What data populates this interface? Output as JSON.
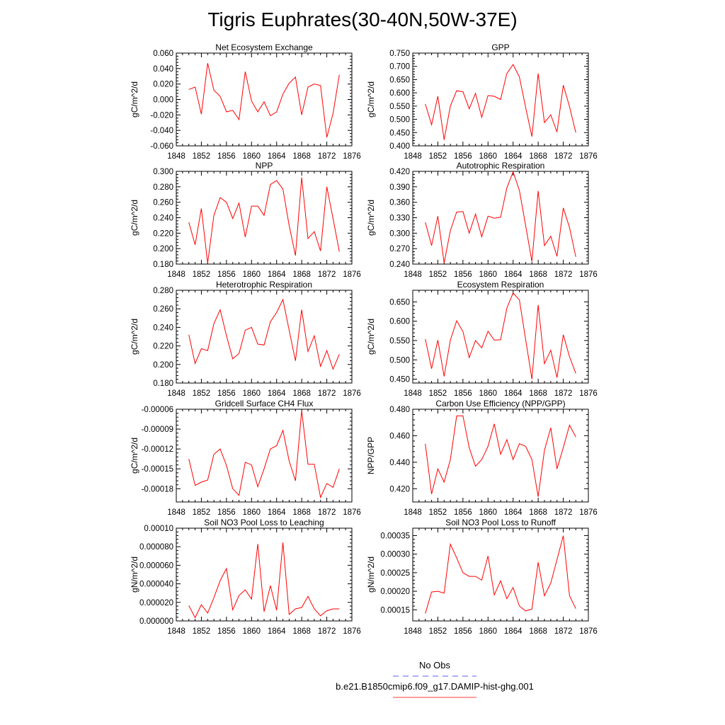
{
  "title": "Tigris Euphrates(30-40N,50W-37E)",
  "legend": [
    {
      "label": "No Obs",
      "color": "#5a5aff",
      "dash": true
    },
    {
      "label": "b.e21.B1850cmip6.f09_g17.DAMIP-hist-ghg.001",
      "color": "#ff3b3b",
      "dash": false
    }
  ],
  "chart_data": [
    {
      "type": "line",
      "title": "Net Ecosystem Exchange",
      "ylabel": "gC/m^2/d",
      "ylim": [
        -0.06,
        0.06
      ],
      "xlim": [
        1848,
        1876
      ],
      "yticks": [
        -0.06,
        -0.04,
        -0.02,
        0,
        0.02,
        0.04,
        0.06
      ],
      "ytick_labels": [
        "-0.060",
        "-0.040",
        "-0.020",
        "0.000",
        "0.020",
        "0.040",
        "0.060"
      ],
      "xticks": [
        1848,
        1852,
        1856,
        1860,
        1864,
        1868,
        1872,
        1876
      ],
      "x": [
        1850,
        1851,
        1852,
        1853,
        1854,
        1855,
        1856,
        1857,
        1858,
        1859,
        1860,
        1861,
        1862,
        1863,
        1864,
        1865,
        1866,
        1867,
        1868,
        1869,
        1870,
        1871,
        1872,
        1873,
        1874
      ],
      "series": [
        {
          "values": [
            0.013,
            0.016,
            -0.019,
            0.047,
            0.012,
            0.004,
            -0.016,
            -0.014,
            -0.026,
            0.036,
            -0.002,
            -0.016,
            -0.003,
            -0.021,
            -0.016,
            0.007,
            0.021,
            0.029,
            -0.02,
            0.016,
            0.02,
            0.018,
            -0.049,
            -0.018,
            0.032
          ]
        }
      ]
    },
    {
      "type": "line",
      "title": "GPP",
      "ylabel": "gC/m^2/d",
      "ylim": [
        0.4,
        0.75
      ],
      "xlim": [
        1848,
        1876
      ],
      "yticks": [
        0.4,
        0.45,
        0.5,
        0.55,
        0.6,
        0.65,
        0.7,
        0.75
      ],
      "ytick_labels": [
        "0.400",
        "0.450",
        "0.500",
        "0.550",
        "0.600",
        "0.650",
        "0.700",
        "0.750"
      ],
      "xticks": [
        1848,
        1852,
        1856,
        1860,
        1864,
        1868,
        1872,
        1876
      ],
      "x": [
        1850,
        1851,
        1852,
        1853,
        1854,
        1855,
        1856,
        1857,
        1858,
        1859,
        1860,
        1861,
        1862,
        1863,
        1864,
        1865,
        1866,
        1867,
        1868,
        1869,
        1870,
        1871,
        1872,
        1873,
        1874
      ],
      "series": [
        {
          "values": [
            0.558,
            0.48,
            0.587,
            0.423,
            0.55,
            0.608,
            0.604,
            0.54,
            0.598,
            0.508,
            0.59,
            0.587,
            0.575,
            0.673,
            0.707,
            0.66,
            0.545,
            0.435,
            0.673,
            0.488,
            0.517,
            0.452,
            0.629,
            0.548,
            0.45
          ]
        }
      ]
    },
    {
      "type": "line",
      "title": "NPP",
      "ylabel": "gC/m^2/d",
      "ylim": [
        0.18,
        0.3
      ],
      "xlim": [
        1848,
        1876
      ],
      "yticks": [
        0.18,
        0.2,
        0.22,
        0.24,
        0.26,
        0.28,
        0.3
      ],
      "ytick_labels": [
        "0.180",
        "0.200",
        "0.220",
        "0.240",
        "0.260",
        "0.280",
        "0.300"
      ],
      "xticks": [
        1848,
        1852,
        1856,
        1860,
        1864,
        1868,
        1872,
        1876
      ],
      "x": [
        1850,
        1851,
        1852,
        1853,
        1854,
        1855,
        1856,
        1857,
        1858,
        1859,
        1860,
        1861,
        1862,
        1863,
        1864,
        1865,
        1866,
        1867,
        1868,
        1869,
        1870,
        1871,
        1872,
        1873,
        1874
      ],
      "series": [
        {
          "values": [
            0.234,
            0.205,
            0.252,
            0.181,
            0.243,
            0.266,
            0.26,
            0.239,
            0.259,
            0.215,
            0.255,
            0.255,
            0.243,
            0.283,
            0.288,
            0.277,
            0.23,
            0.191,
            0.292,
            0.213,
            0.222,
            0.197,
            0.28,
            0.239,
            0.196
          ]
        }
      ]
    },
    {
      "type": "line",
      "title": "Autotrophic Respiration",
      "ylabel": "gC/m^2/d",
      "ylim": [
        0.24,
        0.42
      ],
      "xlim": [
        1848,
        1876
      ],
      "yticks": [
        0.24,
        0.27,
        0.3,
        0.33,
        0.36,
        0.39,
        0.42
      ],
      "ytick_labels": [
        "0.240",
        "0.270",
        "0.300",
        "0.330",
        "0.360",
        "0.390",
        "0.420"
      ],
      "xticks": [
        1848,
        1852,
        1856,
        1860,
        1864,
        1868,
        1872,
        1876
      ],
      "x": [
        1850,
        1851,
        1852,
        1853,
        1854,
        1855,
        1856,
        1857,
        1858,
        1859,
        1860,
        1861,
        1862,
        1863,
        1864,
        1865,
        1866,
        1867,
        1868,
        1869,
        1870,
        1871,
        1872,
        1873,
        1874
      ],
      "series": [
        {
          "values": [
            0.321,
            0.276,
            0.333,
            0.242,
            0.305,
            0.341,
            0.342,
            0.3,
            0.337,
            0.293,
            0.333,
            0.329,
            0.331,
            0.388,
            0.419,
            0.383,
            0.315,
            0.245,
            0.382,
            0.276,
            0.294,
            0.255,
            0.349,
            0.311,
            0.254
          ]
        }
      ]
    },
    {
      "type": "line",
      "title": "Heterotrophic Respiration",
      "ylabel": "gC/m^2/d",
      "ylim": [
        0.18,
        0.28
      ],
      "xlim": [
        1848,
        1876
      ],
      "yticks": [
        0.18,
        0.2,
        0.22,
        0.24,
        0.26,
        0.28
      ],
      "ytick_labels": [
        "0.180",
        "0.200",
        "0.220",
        "0.240",
        "0.260",
        "0.280"
      ],
      "xticks": [
        1848,
        1852,
        1856,
        1860,
        1864,
        1868,
        1872,
        1876
      ],
      "x": [
        1850,
        1851,
        1852,
        1853,
        1854,
        1855,
        1856,
        1857,
        1858,
        1859,
        1860,
        1861,
        1862,
        1863,
        1864,
        1865,
        1866,
        1867,
        1868,
        1869,
        1870,
        1871,
        1872,
        1873,
        1874
      ],
      "series": [
        {
          "values": [
            0.232,
            0.201,
            0.217,
            0.215,
            0.244,
            0.259,
            0.231,
            0.206,
            0.212,
            0.237,
            0.24,
            0.222,
            0.221,
            0.246,
            0.256,
            0.27,
            0.237,
            0.204,
            0.259,
            0.214,
            0.231,
            0.198,
            0.215,
            0.195,
            0.211
          ]
        }
      ]
    },
    {
      "type": "line",
      "title": "Ecosystem Respiration",
      "ylabel": "gC/m^2/d",
      "ylim": [
        0.44,
        0.68
      ],
      "xlim": [
        1848,
        1876
      ],
      "yticks": [
        0.45,
        0.5,
        0.55,
        0.6,
        0.65
      ],
      "ytick_labels": [
        "0.450",
        "0.500",
        "0.550",
        "0.600",
        "0.650"
      ],
      "xticks": [
        1848,
        1852,
        1856,
        1860,
        1864,
        1868,
        1872,
        1876
      ],
      "x": [
        1850,
        1851,
        1852,
        1853,
        1854,
        1855,
        1856,
        1857,
        1858,
        1859,
        1860,
        1861,
        1862,
        1863,
        1864,
        1865,
        1866,
        1867,
        1868,
        1869,
        1870,
        1871,
        1872,
        1873,
        1874
      ],
      "series": [
        {
          "values": [
            0.554,
            0.477,
            0.551,
            0.457,
            0.551,
            0.601,
            0.573,
            0.506,
            0.55,
            0.531,
            0.574,
            0.551,
            0.552,
            0.634,
            0.673,
            0.655,
            0.553,
            0.45,
            0.642,
            0.49,
            0.525,
            0.454,
            0.565,
            0.508,
            0.465
          ]
        }
      ]
    },
    {
      "type": "line",
      "title": "Gridcell Surface CH4 Flux",
      "ylabel": "gC/m^2/d",
      "ylim": [
        -0.0002,
        -6e-05
      ],
      "xlim": [
        1848,
        1876
      ],
      "yticks": [
        -0.00018,
        -0.00015,
        -0.00012,
        -9e-05,
        -6e-05
      ],
      "ytick_labels": [
        "-0.00018",
        "-0.00015",
        "-0.00012",
        "-0.00009",
        "-0.00006"
      ],
      "xticks": [
        1848,
        1852,
        1856,
        1860,
        1864,
        1868,
        1872,
        1876
      ],
      "x": [
        1850,
        1851,
        1852,
        1853,
        1854,
        1855,
        1856,
        1857,
        1858,
        1859,
        1860,
        1861,
        1862,
        1863,
        1864,
        1865,
        1866,
        1867,
        1868,
        1869,
        1870,
        1871,
        1872,
        1873,
        1874
      ],
      "series": [
        {
          "values": [
            -0.000135,
            -0.000175,
            -0.00017,
            -0.000167,
            -0.000128,
            -0.00012,
            -0.000145,
            -0.00018,
            -0.00019,
            -0.00014,
            -0.000144,
            -0.000177,
            -0.00015,
            -0.00012,
            -0.000115,
            -9.2e-05,
            -0.000138,
            -0.000168,
            -6.2e-05,
            -0.000143,
            -0.000143,
            -0.000193,
            -0.000172,
            -0.000178,
            -0.00015
          ]
        }
      ]
    },
    {
      "type": "line",
      "title": "Carbon Use Efficiency (NPP/GPP)",
      "ylabel": "NPP/GPP",
      "ylim": [
        0.41,
        0.48
      ],
      "xlim": [
        1848,
        1876
      ],
      "yticks": [
        0.42,
        0.44,
        0.46,
        0.48
      ],
      "ytick_labels": [
        "0.420",
        "0.440",
        "0.460",
        "0.480"
      ],
      "xticks": [
        1848,
        1852,
        1856,
        1860,
        1864,
        1868,
        1872,
        1876
      ],
      "x": [
        1850,
        1851,
        1852,
        1853,
        1854,
        1855,
        1856,
        1857,
        1858,
        1859,
        1860,
        1861,
        1862,
        1863,
        1864,
        1865,
        1866,
        1867,
        1868,
        1869,
        1870,
        1871,
        1872,
        1873,
        1874
      ],
      "series": [
        {
          "values": [
            0.454,
            0.416,
            0.435,
            0.425,
            0.442,
            0.475,
            0.475,
            0.451,
            0.437,
            0.442,
            0.452,
            0.469,
            0.446,
            0.457,
            0.442,
            0.454,
            0.452,
            0.442,
            0.414,
            0.449,
            0.466,
            0.435,
            0.451,
            0.468,
            0.459
          ]
        }
      ]
    },
    {
      "type": "line",
      "title": "Soil NO3 Pool Loss to Leaching",
      "ylabel": "gN/m^2/d",
      "ylim": [
        0,
        0.0001
      ],
      "xlim": [
        1848,
        1876
      ],
      "yticks": [
        0,
        2e-05,
        4e-05,
        6e-05,
        8e-05,
        0.0001
      ],
      "ytick_labels": [
        "0.000000",
        "0.000020",
        "0.000040",
        "0.000060",
        "0.000080",
        "0.00010"
      ],
      "xticks": [
        1848,
        1852,
        1856,
        1860,
        1864,
        1868,
        1872,
        1876
      ],
      "x": [
        1850,
        1851,
        1852,
        1853,
        1854,
        1855,
        1856,
        1857,
        1858,
        1859,
        1860,
        1861,
        1862,
        1863,
        1864,
        1865,
        1866,
        1867,
        1868,
        1869,
        1870,
        1871,
        1872,
        1873,
        1874
      ],
      "series": [
        {
          "values": [
            1.65e-05,
            3.5e-06,
            1.75e-05,
            8.5e-06,
            2.5e-05,
            4.35e-05,
            5.65e-05,
            1.2e-05,
            2.75e-05,
            3.35e-05,
            2.35e-05,
            8.3e-05,
            1e-05,
            3.8e-05,
            1.15e-05,
            8.45e-05,
            7e-06,
            1.3e-05,
            1.45e-05,
            2.65e-05,
            1.3e-05,
            5.5e-06,
            1.1e-05,
            1.3e-05,
            1.3e-05
          ]
        }
      ]
    },
    {
      "type": "line",
      "title": "Soil NO3 Pool Loss to Runoff",
      "ylabel": "gN/m^2/d",
      "ylim": [
        0.00012,
        0.00037
      ],
      "xlim": [
        1848,
        1876
      ],
      "yticks": [
        0.00015,
        0.0002,
        0.00025,
        0.0003,
        0.00035
      ],
      "ytick_labels": [
        "0.00015",
        "0.00020",
        "0.00025",
        "0.00030",
        "0.00035"
      ],
      "xticks": [
        1848,
        1852,
        1856,
        1860,
        1864,
        1868,
        1872,
        1876
      ],
      "x": [
        1850,
        1851,
        1852,
        1853,
        1854,
        1855,
        1856,
        1857,
        1858,
        1859,
        1860,
        1861,
        1862,
        1863,
        1864,
        1865,
        1866,
        1867,
        1868,
        1869,
        1870,
        1871,
        1872,
        1873,
        1874
      ],
      "series": [
        {
          "values": [
            0.00014,
            0.000198,
            0.0002,
            0.000195,
            0.000327,
            0.00029,
            0.00025,
            0.00024,
            0.00024,
            0.00023,
            0.000295,
            0.00019,
            0.000228,
            0.00018,
            0.00021,
            0.00016,
            0.000147,
            0.000152,
            0.000278,
            0.000188,
            0.000222,
            0.000285,
            0.00035,
            0.000188,
            0.000153
          ]
        }
      ]
    }
  ]
}
